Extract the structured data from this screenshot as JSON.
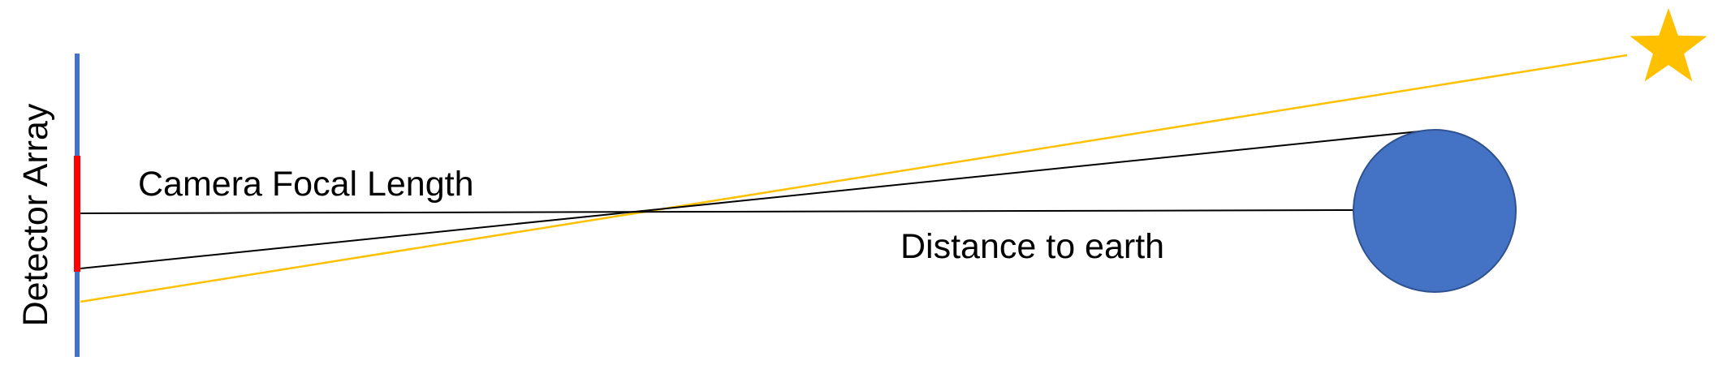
{
  "labels": {
    "detector_array": "Detector Array",
    "camera_focal_length": "Camera Focal Length",
    "distance_to_earth": "Distance to earth"
  },
  "colors": {
    "detector_line": "#4472C4",
    "detector_highlight": "#FF0000",
    "earth_fill": "#4472C4",
    "earth_stroke": "#2F528F",
    "star": "#FFC000",
    "star_ray": "#FFC000",
    "ray_lines": "#000000",
    "text": "#000000"
  },
  "icons": {
    "earth": "earth-circle",
    "star": "star-icon"
  }
}
